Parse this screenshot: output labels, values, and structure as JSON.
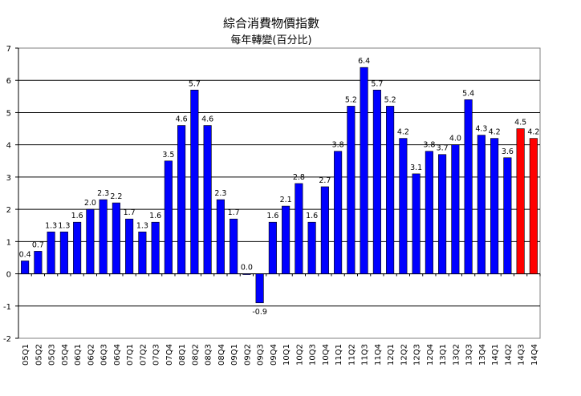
{
  "chart_data": {
    "type": "bar",
    "title": "綜合消費物價指數",
    "subtitle": "每年轉變(百分比)",
    "xlabel": "",
    "ylabel": "",
    "ylim": [
      -2,
      7
    ],
    "yticks": [
      -2,
      -1,
      0,
      1,
      2,
      3,
      4,
      5,
      6,
      7
    ],
    "grid": true,
    "categories": [
      "05Q1",
      "05Q2",
      "05Q3",
      "05Q4",
      "06Q1",
      "06Q2",
      "06Q3",
      "06Q4",
      "07Q1",
      "07Q2",
      "07Q3",
      "07Q4",
      "08Q1",
      "08Q2",
      "08Q3",
      "08Q4",
      "09Q1",
      "09Q2",
      "09Q3",
      "09Q4",
      "10Q1",
      "10Q2",
      "10Q3",
      "10Q4",
      "11Q1",
      "11Q2",
      "11Q3",
      "11Q4",
      "12Q1",
      "12Q2",
      "12Q3",
      "12Q4",
      "13Q1",
      "13Q2",
      "13Q3",
      "13Q4",
      "14Q1",
      "14Q2",
      "14Q3",
      "14Q4"
    ],
    "values": [
      0.4,
      0.7,
      1.3,
      1.3,
      1.6,
      2.0,
      2.3,
      2.2,
      1.7,
      1.3,
      1.6,
      3.5,
      4.6,
      5.7,
      4.6,
      2.3,
      1.7,
      0.0,
      -0.9,
      1.6,
      2.1,
      2.8,
      1.6,
      2.7,
      3.8,
      5.2,
      6.4,
      5.7,
      5.2,
      4.2,
      3.1,
      3.8,
      3.7,
      4.0,
      5.4,
      4.3,
      4.2,
      3.6,
      4.5,
      4.2
    ],
    "data_labels": [
      "0.4",
      "0.7",
      "1.3",
      "1.3",
      "1.6",
      "2.0",
      "2.3",
      "2.2",
      "1.7",
      "1.3",
      "1.6",
      "3.5",
      "4.6",
      "5.7",
      "4.6",
      "2.3",
      "1.7",
      "0.0",
      "-0.9",
      "1.6",
      "2.1",
      "2.8",
      "1.6",
      "2.7",
      "3.8",
      "5.2",
      "6.4",
      "5.7",
      "5.2",
      "4.2",
      "3.1",
      "3.8",
      "3.7",
      "4.0",
      "5.4",
      "4.3",
      "4.2",
      "3.6",
      "4.5",
      "4.2"
    ],
    "colors": {
      "default": "#0000ff",
      "highlight": "#ff0000"
    },
    "highlighted_categories": [
      "14Q3",
      "14Q4"
    ]
  }
}
